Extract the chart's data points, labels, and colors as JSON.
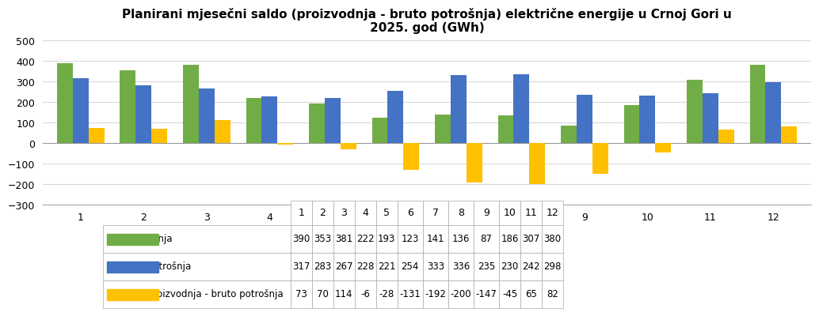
{
  "title": "Planirani mjesečni saldo (proizvodnja - bruto potrošnja) električne energije u Crnoj Gori u\n2025. god (GWh)",
  "months": [
    1,
    2,
    3,
    4,
    5,
    6,
    7,
    8,
    9,
    10,
    11,
    12
  ],
  "proizvodnja": [
    390,
    353,
    381,
    222,
    193,
    123,
    141,
    136,
    87,
    186,
    307,
    380
  ],
  "bruto_potrosnja": [
    317,
    283,
    267,
    228,
    221,
    254,
    333,
    336,
    235,
    230,
    242,
    298
  ],
  "saldo": [
    73,
    70,
    114,
    -6,
    -28,
    -131,
    -192,
    -200,
    -147,
    -45,
    65,
    82
  ],
  "color_proizvodnja": "#70AD47",
  "color_bruto": "#4472C4",
  "color_saldo": "#FFC000",
  "ylim": [
    -300,
    500
  ],
  "yticks": [
    -300,
    -200,
    -100,
    0,
    100,
    200,
    300,
    400,
    500
  ],
  "legend_labels": [
    "Proizvodnja",
    "Bruto potrošnja",
    "Saldo proizvodnja - bruto potrošnja"
  ],
  "background_color": "#FFFFFF",
  "grid_color": "#D9D9D9",
  "title_fontsize": 11,
  "bar_width": 0.25
}
